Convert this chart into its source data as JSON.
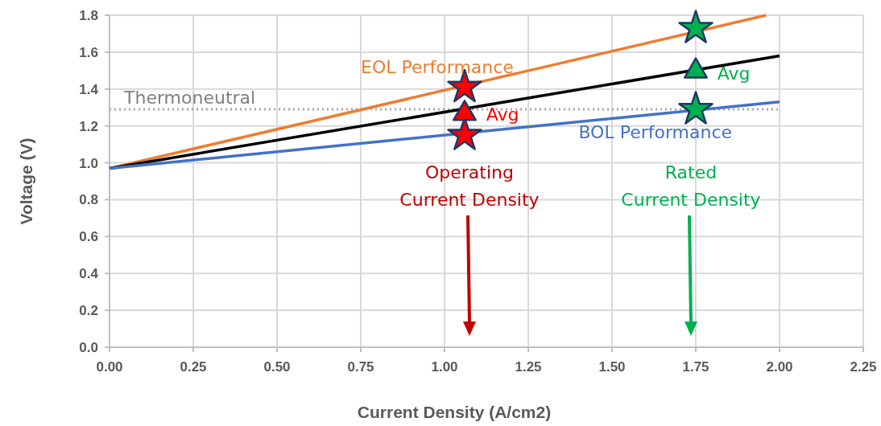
{
  "chart_data": {
    "type": "line",
    "xlabel": "Current Density (A/cm2)",
    "ylabel": "Voltage (V)",
    "xlim": [
      0,
      2.25
    ],
    "ylim": [
      0,
      1.8
    ],
    "xticks": [
      {
        "value": 0,
        "label": "0.00"
      },
      {
        "value": 0.25,
        "label": "0.25"
      },
      {
        "value": 0.5,
        "label": "0.50"
      },
      {
        "value": 0.75,
        "label": "0.75"
      },
      {
        "value": 1,
        "label": "1.00"
      },
      {
        "value": 1.25,
        "label": "1.25"
      },
      {
        "value": 1.5,
        "label": "1.50"
      },
      {
        "value": 1.75,
        "label": "1.75"
      },
      {
        "value": 2,
        "label": "2.00"
      },
      {
        "value": 2.25,
        "label": "2.25"
      }
    ],
    "yticks": [
      {
        "value": 0,
        "label": "0.0"
      },
      {
        "value": 0.2,
        "label": "0.2"
      },
      {
        "value": 0.4,
        "label": "0.4"
      },
      {
        "value": 0.6,
        "label": "0.6"
      },
      {
        "value": 0.8,
        "label": "0.8"
      },
      {
        "value": 1,
        "label": "1.0"
      },
      {
        "value": 1.2,
        "label": "1.2"
      },
      {
        "value": 1.4,
        "label": "1.4"
      },
      {
        "value": 1.6,
        "label": "1.6"
      },
      {
        "value": 1.8,
        "label": "1.8"
      }
    ],
    "grid": true,
    "legend": false,
    "series": [
      {
        "name": "EOL Performance",
        "color": "#ed7d31",
        "x": [
          0,
          1.96
        ],
        "values": [
          0.97,
          1.8
        ]
      },
      {
        "color": "#000000",
        "x": [
          0,
          2
        ],
        "values": [
          0.97,
          1.58
        ]
      },
      {
        "name": "BOL Performance",
        "color": "#4472c4",
        "x": [
          0,
          2
        ],
        "values": [
          0.97,
          1.33
        ]
      },
      {
        "type": "scatter",
        "color": "#ff0000",
        "x": [
          1.06,
          1.06
        ],
        "values": [
          1.41,
          1.15
        ],
        "marker": "star"
      },
      {
        "type": "scatter",
        "name": "Avg",
        "color": "#ff0000",
        "x": [
          1.06
        ],
        "values": [
          1.28
        ],
        "marker": "triangle"
      },
      {
        "type": "scatter",
        "color": "#00b050",
        "x": [
          1.75,
          1.75
        ],
        "values": [
          1.73,
          1.29
        ],
        "marker": "star"
      },
      {
        "type": "scatter",
        "name": "Avg",
        "color": "#00b050",
        "x": [
          1.75
        ],
        "values": [
          1.51
        ],
        "marker": "triangle"
      }
    ],
    "ref_lines": [
      {
        "axis": "y",
        "value": 1.29,
        "label": "Thermoneutral",
        "color": "#a6a6a6",
        "line_style": "dotted"
      }
    ],
    "annotations": [
      "Operating\nCurrent Density",
      "Rated\nCurrent Density"
    ]
  }
}
